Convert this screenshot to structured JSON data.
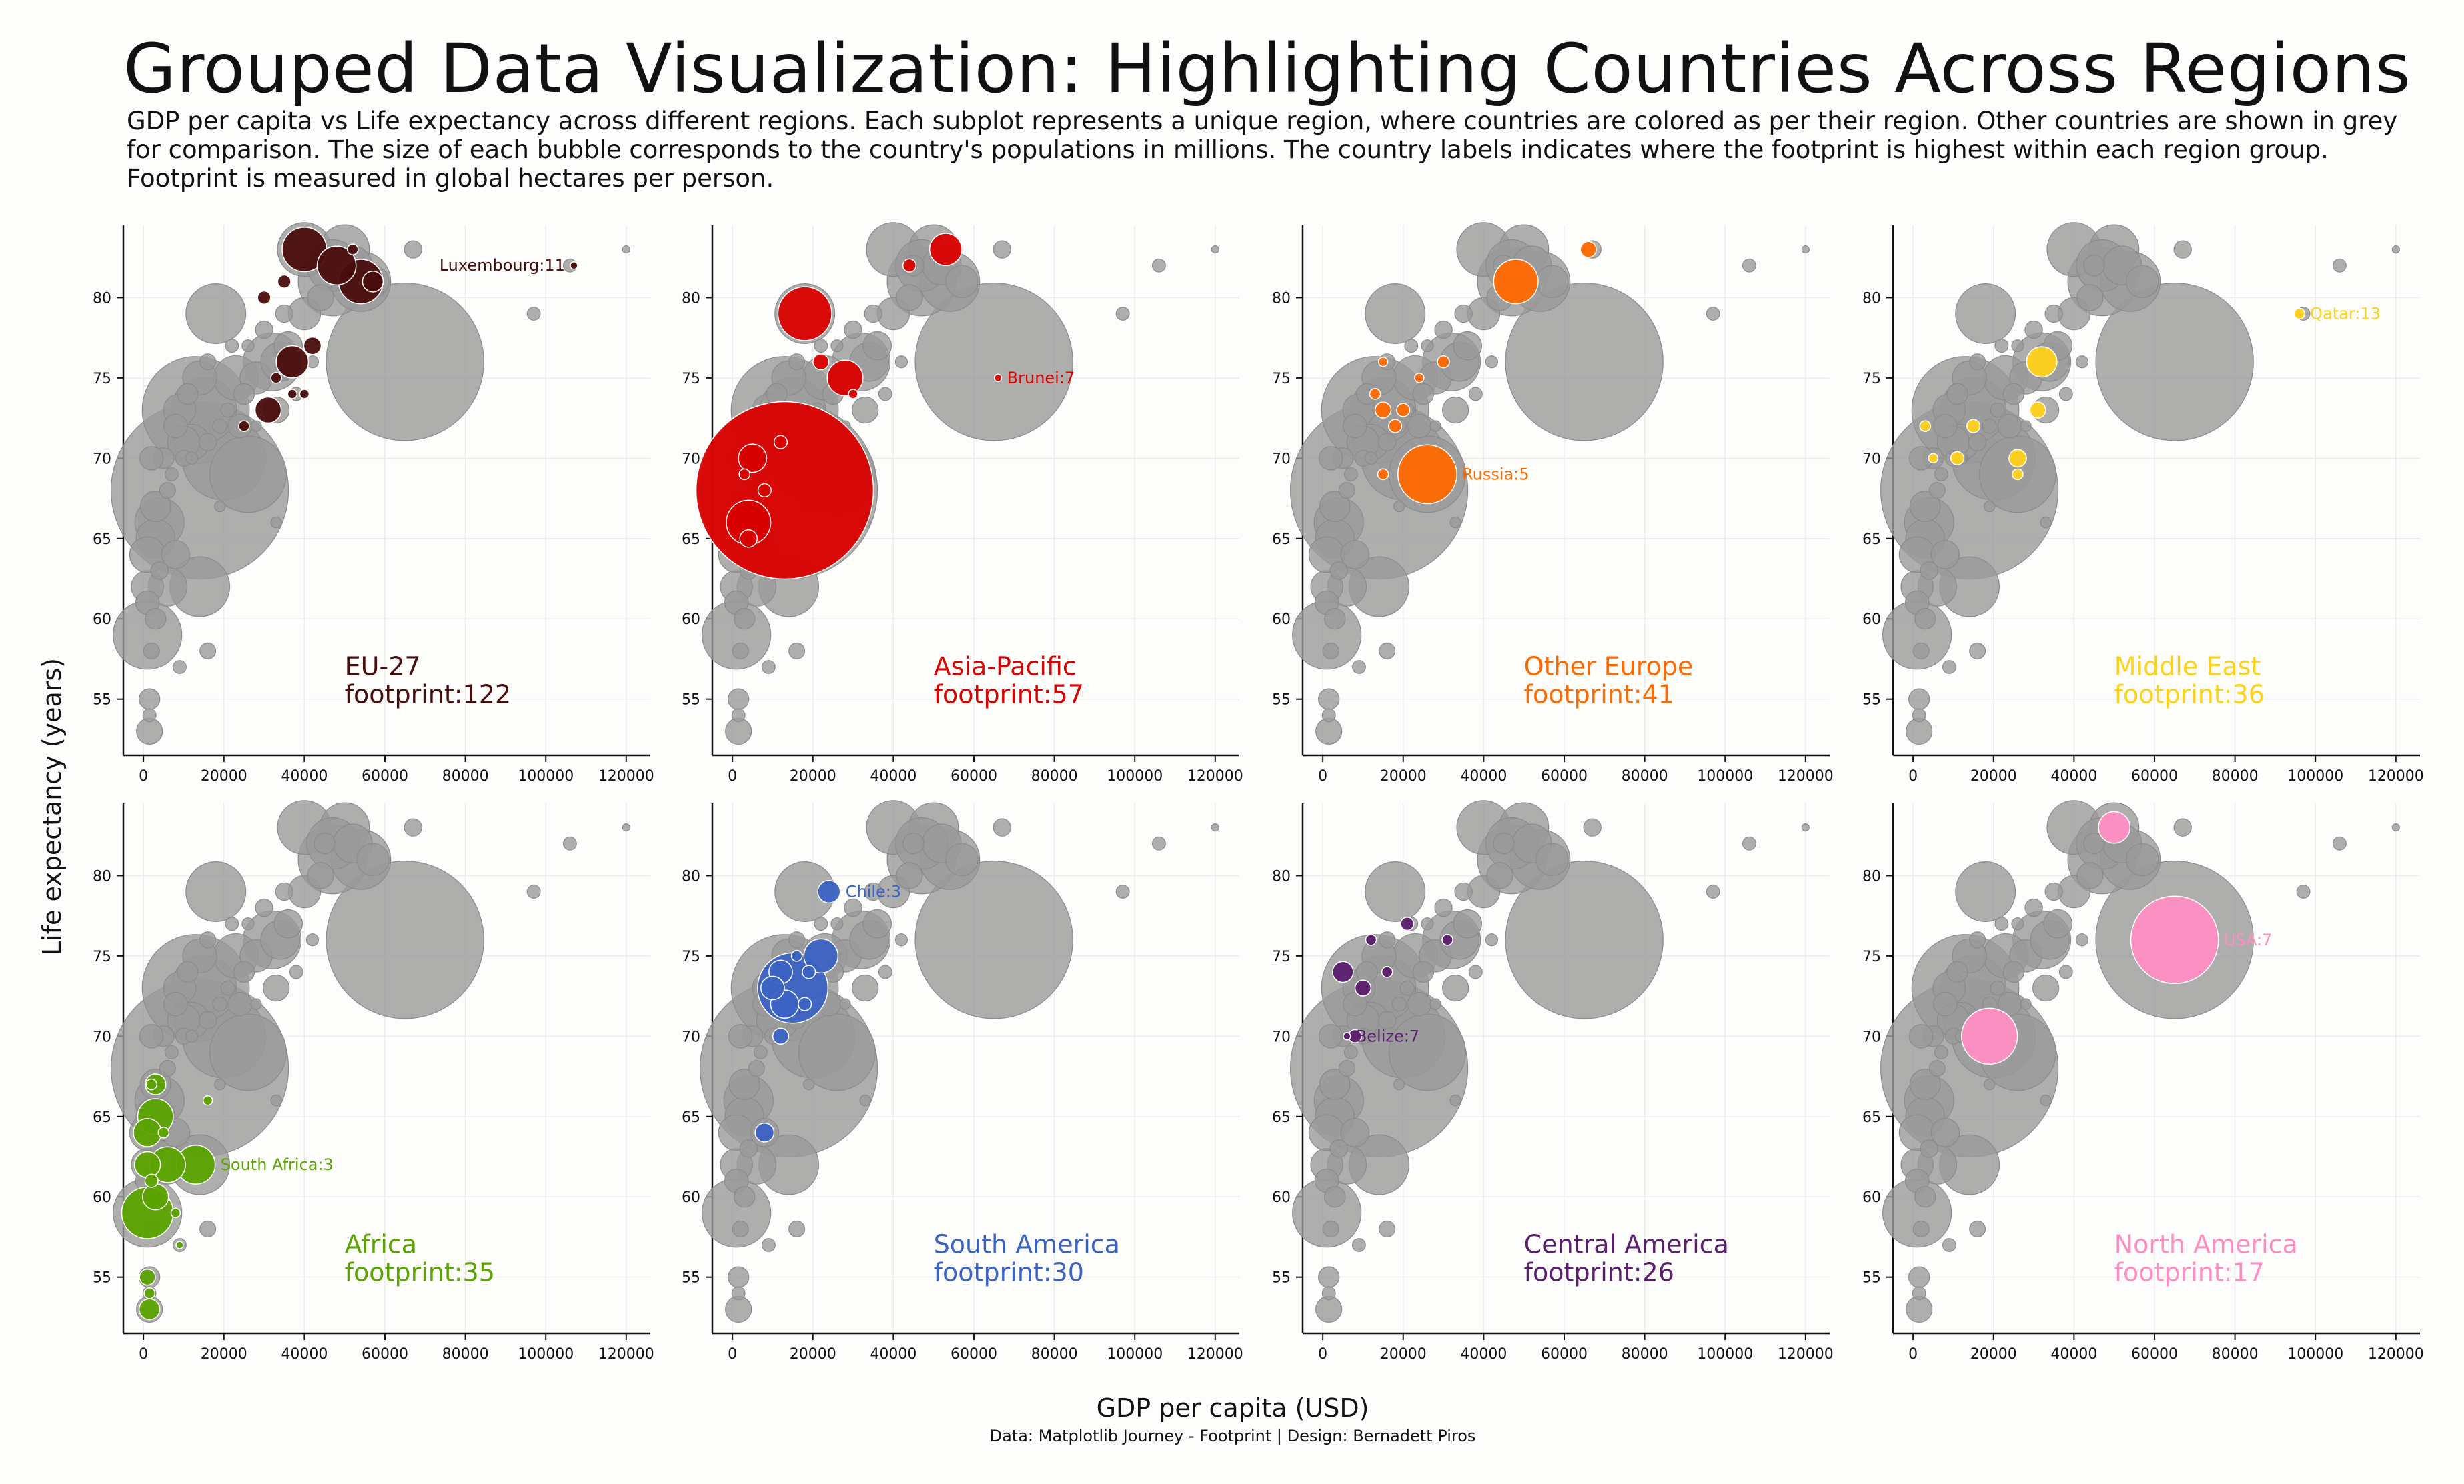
{
  "title": "Grouped Data Visualization: Highlighting Countries Across Regions",
  "subtitle": "GDP per capita vs Life expectancy across different regions. Each subplot represents a unique region, where countries are colored as per their region. Other countries are shown in grey for comparison. The size of each bubble corresponds to the country's populations in millions. The country labels indicates where the footprint is highest within each region group. Footprint is measured in global hectares per person.",
  "xlabel": "GDP per capita (USD)",
  "ylabel": "Life expectancy (years)",
  "credit": "Data: Matplotlib Journey - Footprint | Design: Bernadett Piros",
  "chart_data": {
    "type": "scatter",
    "layout": "small-multiples 2x4",
    "xlim": [
      -5000,
      126000
    ],
    "ylim": [
      51.5,
      84.5
    ],
    "xticks": [
      0,
      20000,
      40000,
      60000,
      80000,
      100000,
      120000
    ],
    "xtick_labels": [
      "0",
      "20000",
      "40000",
      "60000",
      "80000",
      "100000",
      "120000"
    ],
    "yticks": [
      55,
      60,
      65,
      70,
      75,
      80
    ],
    "ytick_labels": [
      "55",
      "60",
      "65",
      "70",
      "75",
      "80"
    ],
    "grid": true,
    "background_color": "#9a9a9a",
    "background_points": [
      {
        "x": 14000,
        "y": 68,
        "pop": 1400
      },
      {
        "x": 13000,
        "y": 73,
        "pop": 500
      },
      {
        "x": 20000,
        "y": 70,
        "pop": 300
      },
      {
        "x": 26000,
        "y": 69,
        "pop": 250
      },
      {
        "x": 65000,
        "y": 76,
        "pop": 1100
      },
      {
        "x": 1000,
        "y": 59,
        "pop": 200
      },
      {
        "x": 14000,
        "y": 62,
        "pop": 150
      },
      {
        "x": 18000,
        "y": 79,
        "pop": 150
      },
      {
        "x": 47000,
        "y": 81,
        "pop": 200
      },
      {
        "x": 54000,
        "y": 81,
        "pop": 150
      },
      {
        "x": 32000,
        "y": 76,
        "pop": 140
      },
      {
        "x": 4000,
        "y": 66,
        "pop": 100
      },
      {
        "x": 15000,
        "y": 73,
        "pop": 180
      },
      {
        "x": 40000,
        "y": 83,
        "pop": 120
      },
      {
        "x": 50000,
        "y": 83,
        "pop": 100
      },
      {
        "x": 47000,
        "y": 82,
        "pop": 110
      },
      {
        "x": 23000,
        "y": 75,
        "pop": 80
      },
      {
        "x": 3000,
        "y": 65,
        "pop": 60
      },
      {
        "x": 6000,
        "y": 62,
        "pop": 60
      },
      {
        "x": 1000,
        "y": 62,
        "pop": 40
      },
      {
        "x": 1000,
        "y": 64,
        "pop": 50
      },
      {
        "x": 8000,
        "y": 64,
        "pop": 30
      },
      {
        "x": 3000,
        "y": 67,
        "pop": 35
      },
      {
        "x": 12000,
        "y": 71,
        "pop": 50
      },
      {
        "x": 10000,
        "y": 71,
        "pop": 40
      },
      {
        "x": 9000,
        "y": 73,
        "pop": 40
      },
      {
        "x": 14000,
        "y": 75,
        "pop": 45
      },
      {
        "x": 28000,
        "y": 75,
        "pop": 40
      },
      {
        "x": 34000,
        "y": 76,
        "pop": 60
      },
      {
        "x": 36000,
        "y": 77,
        "pop": 30
      },
      {
        "x": 40000,
        "y": 79,
        "pop": 40
      },
      {
        "x": 44000,
        "y": 80,
        "pop": 25
      },
      {
        "x": 52000,
        "y": 82,
        "pop": 60
      },
      {
        "x": 57000,
        "y": 81,
        "pop": 40
      },
      {
        "x": 33000,
        "y": 73,
        "pop": 25
      },
      {
        "x": 24000,
        "y": 72,
        "pop": 20
      },
      {
        "x": 8000,
        "y": 72,
        "pop": 20
      },
      {
        "x": 5000,
        "y": 70,
        "pop": 15
      },
      {
        "x": 2000,
        "y": 70,
        "pop": 20
      },
      {
        "x": 1500,
        "y": 55,
        "pop": 15
      },
      {
        "x": 1500,
        "y": 53,
        "pop": 25
      },
      {
        "x": 1500,
        "y": 54,
        "pop": 5
      },
      {
        "x": 1000,
        "y": 61,
        "pop": 20
      },
      {
        "x": 3000,
        "y": 60,
        "pop": 15
      },
      {
        "x": 11000,
        "y": 74,
        "pop": 15
      },
      {
        "x": 25000,
        "y": 74,
        "pop": 15
      },
      {
        "x": 30000,
        "y": 78,
        "pop": 10
      },
      {
        "x": 35000,
        "y": 79,
        "pop": 10
      },
      {
        "x": 45000,
        "y": 82,
        "pop": 15
      },
      {
        "x": 67000,
        "y": 83,
        "pop": 10
      },
      {
        "x": 97000,
        "y": 79,
        "pop": 5
      },
      {
        "x": 106000,
        "y": 82,
        "pop": 5
      },
      {
        "x": 120000,
        "y": 83,
        "pop": 1
      },
      {
        "x": 33000,
        "y": 66,
        "pop": 3
      },
      {
        "x": 9000,
        "y": 57,
        "pop": 5
      },
      {
        "x": 16000,
        "y": 58,
        "pop": 8
      },
      {
        "x": 6000,
        "y": 68,
        "pop": 8
      },
      {
        "x": 7000,
        "y": 69,
        "pop": 5
      },
      {
        "x": 10000,
        "y": 70,
        "pop": 8
      },
      {
        "x": 16000,
        "y": 71,
        "pop": 10
      },
      {
        "x": 19000,
        "y": 72,
        "pop": 6
      },
      {
        "x": 21000,
        "y": 73,
        "pop": 6
      },
      {
        "x": 16000,
        "y": 76,
        "pop": 8
      },
      {
        "x": 22000,
        "y": 77,
        "pop": 5
      },
      {
        "x": 26000,
        "y": 77,
        "pop": 4
      },
      {
        "x": 38000,
        "y": 74,
        "pop": 5
      },
      {
        "x": 42000,
        "y": 76,
        "pop": 4
      },
      {
        "x": 4000,
        "y": 63,
        "pop": 10
      },
      {
        "x": 2000,
        "y": 58,
        "pop": 8
      },
      {
        "x": 12000,
        "y": 70,
        "pop": 4
      },
      {
        "x": 19000,
        "y": 67,
        "pop": 3
      },
      {
        "x": 28000,
        "y": 72,
        "pop": 3
      }
    ],
    "panels": [
      {
        "region": "EU-27",
        "footprint_label": "footprint:122",
        "color": "#4a0d0d",
        "label": {
          "text": "Luxembourg:11",
          "x": 107000,
          "y": 82
        },
        "points": [
          {
            "x": 107000,
            "y": 82,
            "pop": 1
          },
          {
            "x": 40000,
            "y": 83,
            "pop": 80
          },
          {
            "x": 48000,
            "y": 82,
            "pop": 60
          },
          {
            "x": 54000,
            "y": 81,
            "pop": 80
          },
          {
            "x": 37000,
            "y": 76,
            "pop": 40
          },
          {
            "x": 31000,
            "y": 73,
            "pop": 25
          },
          {
            "x": 57000,
            "y": 81,
            "pop": 15
          },
          {
            "x": 42000,
            "y": 77,
            "pop": 10
          },
          {
            "x": 30000,
            "y": 80,
            "pop": 5
          },
          {
            "x": 35000,
            "y": 81,
            "pop": 5
          },
          {
            "x": 52000,
            "y": 83,
            "pop": 3
          },
          {
            "x": 25000,
            "y": 72,
            "pop": 3
          },
          {
            "x": 33000,
            "y": 75,
            "pop": 3
          },
          {
            "x": 40000,
            "y": 74,
            "pop": 2
          },
          {
            "x": 37000,
            "y": 74,
            "pop": 2
          }
        ]
      },
      {
        "region": "Asia-Pacific",
        "footprint_label": "footprint:57",
        "color": "#d90000",
        "label": {
          "text": "Brunei:7",
          "x": 66000,
          "y": 75
        },
        "points": [
          {
            "x": 66000,
            "y": 75,
            "pop": 1
          },
          {
            "x": 13000,
            "y": 68,
            "pop": 1400
          },
          {
            "x": 4000,
            "y": 66,
            "pop": 80
          },
          {
            "x": 18000,
            "y": 79,
            "pop": 120
          },
          {
            "x": 28000,
            "y": 75,
            "pop": 50
          },
          {
            "x": 53000,
            "y": 83,
            "pop": 40
          },
          {
            "x": 5000,
            "y": 70,
            "pop": 30
          },
          {
            "x": 4000,
            "y": 65,
            "pop": 10
          },
          {
            "x": 22000,
            "y": 76,
            "pop": 8
          },
          {
            "x": 12000,
            "y": 71,
            "pop": 5
          },
          {
            "x": 8000,
            "y": 68,
            "pop": 5
          },
          {
            "x": 3000,
            "y": 69,
            "pop": 3
          },
          {
            "x": 44000,
            "y": 82,
            "pop": 5
          },
          {
            "x": 30000,
            "y": 74,
            "pop": 2
          }
        ]
      },
      {
        "region": "Other Europe",
        "footprint_label": "footprint:41",
        "color": "#ff6a00",
        "label": {
          "text": "Russia:5",
          "x": 26000,
          "y": 69
        },
        "points": [
          {
            "x": 26000,
            "y": 69,
            "pop": 145
          },
          {
            "x": 48000,
            "y": 81,
            "pop": 80
          },
          {
            "x": 66000,
            "y": 83,
            "pop": 8
          },
          {
            "x": 15000,
            "y": 73,
            "pop": 8
          },
          {
            "x": 20000,
            "y": 73,
            "pop": 5
          },
          {
            "x": 18000,
            "y": 72,
            "pop": 5
          },
          {
            "x": 15000,
            "y": 69,
            "pop": 3
          },
          {
            "x": 13000,
            "y": 74,
            "pop": 3
          },
          {
            "x": 30000,
            "y": 76,
            "pop": 4
          },
          {
            "x": 15000,
            "y": 76,
            "pop": 2
          },
          {
            "x": 24000,
            "y": 75,
            "pop": 2
          }
        ]
      },
      {
        "region": "Middle East",
        "footprint_label": "footprint:36",
        "color": "#ffd21a",
        "label": {
          "text": "Qatar:13",
          "x": 96000,
          "y": 79
        },
        "points": [
          {
            "x": 96000,
            "y": 79,
            "pop": 3
          },
          {
            "x": 32000,
            "y": 76,
            "pop": 35
          },
          {
            "x": 26000,
            "y": 70,
            "pop": 10
          },
          {
            "x": 31000,
            "y": 73,
            "pop": 8
          },
          {
            "x": 15000,
            "y": 72,
            "pop": 5
          },
          {
            "x": 11000,
            "y": 70,
            "pop": 5
          },
          {
            "x": 26000,
            "y": 69,
            "pop": 3
          },
          {
            "x": 3000,
            "y": 72,
            "pop": 3
          },
          {
            "x": 5000,
            "y": 70,
            "pop": 2
          }
        ]
      },
      {
        "region": "Africa",
        "footprint_label": "footprint:35",
        "color": "#5ba300",
        "label": {
          "text": "South Africa:3",
          "x": 13000,
          "y": 62
        },
        "points": [
          {
            "x": 13000,
            "y": 62,
            "pop": 60
          },
          {
            "x": 1000,
            "y": 59,
            "pop": 110
          },
          {
            "x": 3000,
            "y": 65,
            "pop": 50
          },
          {
            "x": 6000,
            "y": 62,
            "pop": 50
          },
          {
            "x": 1000,
            "y": 64,
            "pop": 30
          },
          {
            "x": 1000,
            "y": 62,
            "pop": 25
          },
          {
            "x": 3000,
            "y": 60,
            "pop": 25
          },
          {
            "x": 3000,
            "y": 67,
            "pop": 15
          },
          {
            "x": 1500,
            "y": 53,
            "pop": 15
          },
          {
            "x": 1000,
            "y": 55,
            "pop": 8
          },
          {
            "x": 1500,
            "y": 54,
            "pop": 3
          },
          {
            "x": 2000,
            "y": 61,
            "pop": 5
          },
          {
            "x": 8000,
            "y": 59,
            "pop": 2
          },
          {
            "x": 2000,
            "y": 67,
            "pop": 3
          },
          {
            "x": 16000,
            "y": 66,
            "pop": 2
          },
          {
            "x": 5000,
            "y": 64,
            "pop": 3
          },
          {
            "x": 9000,
            "y": 57,
            "pop": 1
          }
        ]
      },
      {
        "region": "South America",
        "footprint_label": "footprint:30",
        "color": "#3b63c4",
        "label": {
          "text": "Chile:3",
          "x": 24000,
          "y": 79
        },
        "points": [
          {
            "x": 24000,
            "y": 79,
            "pop": 18
          },
          {
            "x": 15000,
            "y": 73,
            "pop": 210
          },
          {
            "x": 22000,
            "y": 75,
            "pop": 45
          },
          {
            "x": 13000,
            "y": 72,
            "pop": 30
          },
          {
            "x": 12000,
            "y": 74,
            "pop": 20
          },
          {
            "x": 10000,
            "y": 73,
            "pop": 20
          },
          {
            "x": 8000,
            "y": 64,
            "pop": 12
          },
          {
            "x": 12000,
            "y": 70,
            "pop": 8
          },
          {
            "x": 19000,
            "y": 74,
            "pop": 5
          },
          {
            "x": 16000,
            "y": 75,
            "pop": 3
          },
          {
            "x": 18000,
            "y": 72,
            "pop": 5
          }
        ]
      },
      {
        "region": "Central America",
        "footprint_label": "footprint:26",
        "color": "#5c1e6e",
        "label": {
          "text": "Belize:7",
          "x": 6000,
          "y": 70
        },
        "points": [
          {
            "x": 6000,
            "y": 70,
            "pop": 1
          },
          {
            "x": 5000,
            "y": 74,
            "pop": 15
          },
          {
            "x": 31000,
            "y": 76,
            "pop": 3
          },
          {
            "x": 21000,
            "y": 77,
            "pop": 5
          },
          {
            "x": 10000,
            "y": 73,
            "pop": 8
          },
          {
            "x": 8000,
            "y": 70,
            "pop": 5
          },
          {
            "x": 16000,
            "y": 74,
            "pop": 3
          },
          {
            "x": 12000,
            "y": 76,
            "pop": 3
          }
        ]
      },
      {
        "region": "North America",
        "footprint_label": "footprint:17",
        "color": "#ff8ec4",
        "label": {
          "text": "USA:7",
          "x": 65000,
          "y": 76
        },
        "points": [
          {
            "x": 65000,
            "y": 76,
            "pop": 330
          },
          {
            "x": 19000,
            "y": 70,
            "pop": 130
          },
          {
            "x": 50000,
            "y": 83,
            "pop": 38
          }
        ]
      }
    ]
  }
}
